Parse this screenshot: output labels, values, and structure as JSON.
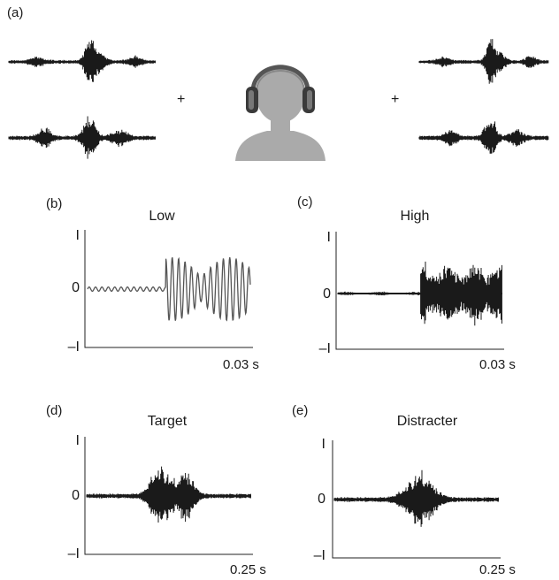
{
  "top": {
    "label": "(a)",
    "plus": "+"
  },
  "panels": [
    {
      "id": "b",
      "label": "(b)",
      "title": "Low",
      "y_ticks": [
        "I",
        "0",
        "–I"
      ],
      "end_label": "0.03 s"
    },
    {
      "id": "c",
      "label": "(c)",
      "title": "High",
      "y_ticks": [
        "I",
        "0",
        "–I"
      ],
      "end_label": "0.03 s"
    },
    {
      "id": "d",
      "label": "(d)",
      "title": "Target",
      "y_ticks": [
        "I",
        "0",
        "–I"
      ],
      "end_label": "0.25 s"
    },
    {
      "id": "e",
      "label": "(e)",
      "title": "Distracter",
      "y_ticks": [
        "I",
        "0",
        "–I"
      ],
      "end_label": "0.25 s"
    }
  ],
  "colors": {
    "waveform": "#1a1a1a",
    "thin_waveform": "#555555",
    "head": "#aaaaaa",
    "headphones": "#555555"
  },
  "icons": {
    "listener": "head-with-headphones-icon"
  }
}
